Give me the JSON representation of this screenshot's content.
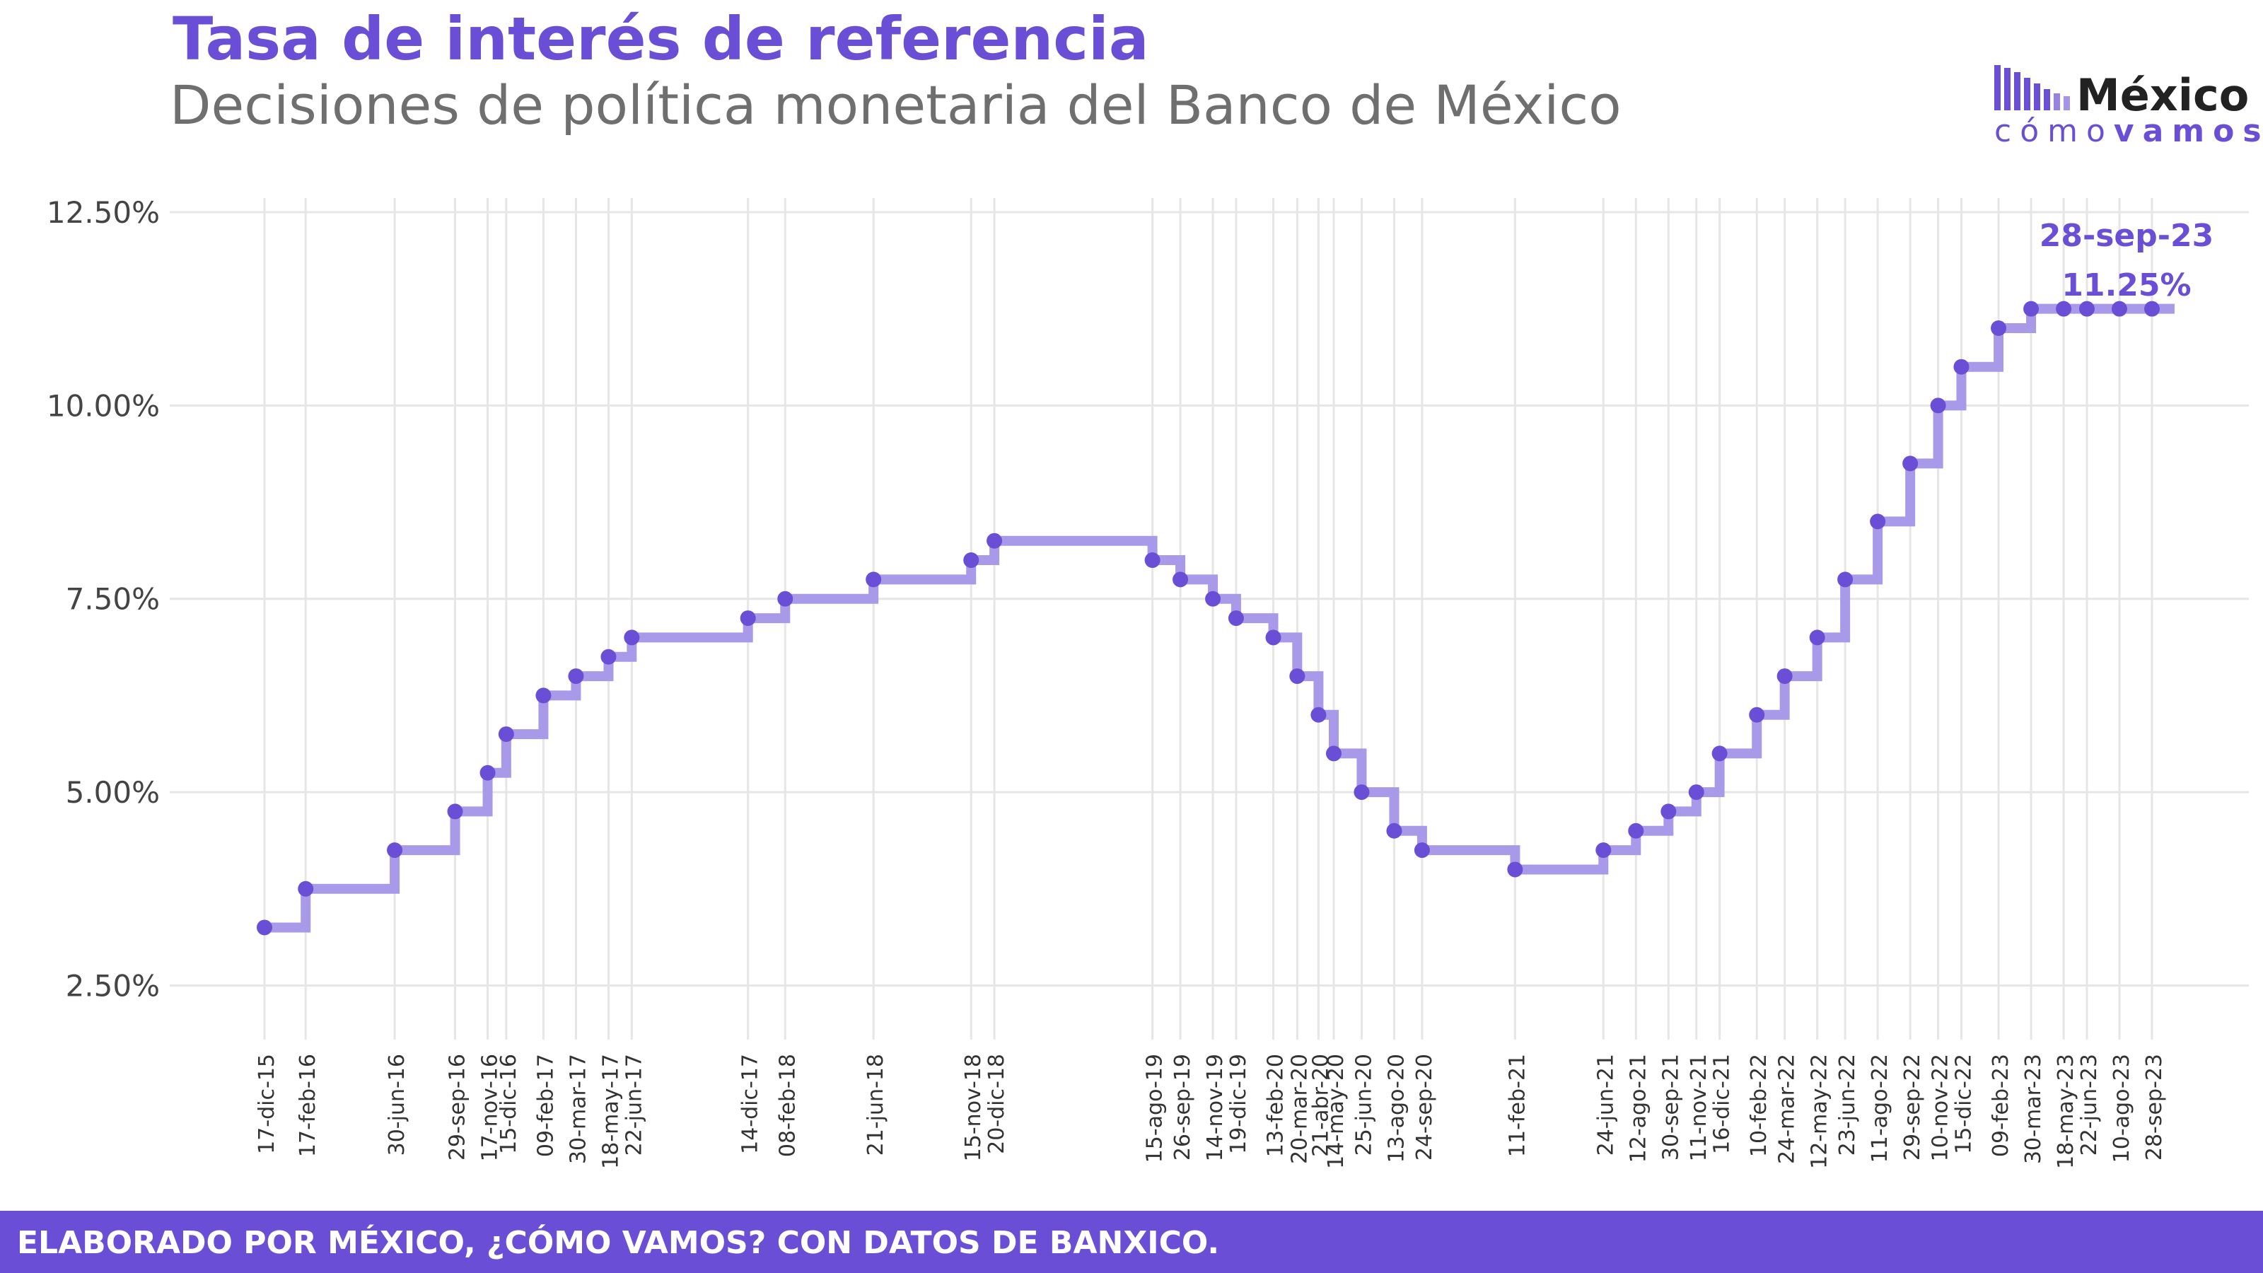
{
  "header": {
    "title": "Tasa de interés de referencia",
    "subtitle": "Decisiones de política monetaria del Banco de México"
  },
  "logo": {
    "word": "México",
    "sub_light": "cómo",
    "sub_bold": "vamos"
  },
  "footer": {
    "text": "ELABORADO POR MÉXICO, ¿CÓMO VAMOS? CON DATOS DE BANXICO."
  },
  "colors": {
    "accent": "#6a4fd6",
    "line": "#a99ae9",
    "grid": "#e6e6e6",
    "footer": "#6a4fd6"
  },
  "chart_data": {
    "type": "line",
    "step": "post",
    "ylim": [
      1.8,
      12.5
    ],
    "yticks": [
      2.5,
      5.0,
      7.5,
      10.0,
      12.5
    ],
    "ytick_labels": [
      "2.50%",
      "5.00%",
      "7.50%",
      "10.00%",
      "12.50%"
    ],
    "grid": true,
    "x_end": "2023-11-01",
    "annotation": {
      "date_label": "28-sep-23",
      "value_label": "11.25%"
    },
    "points": [
      {
        "date": "2015-12-17",
        "label": "17-dic-15",
        "value": 3.25
      },
      {
        "date": "2016-02-17",
        "label": "17-feb-16",
        "value": 3.75
      },
      {
        "date": "2016-06-30",
        "label": "30-jun-16",
        "value": 4.25
      },
      {
        "date": "2016-09-29",
        "label": "29-sep-16",
        "value": 4.75
      },
      {
        "date": "2016-11-17",
        "label": "17-nov-16",
        "value": 5.25
      },
      {
        "date": "2016-12-15",
        "label": "15-dic-16",
        "value": 5.75
      },
      {
        "date": "2017-02-09",
        "label": "09-feb-17",
        "value": 6.25
      },
      {
        "date": "2017-03-30",
        "label": "30-mar-17",
        "value": 6.5
      },
      {
        "date": "2017-05-18",
        "label": "18-may-17",
        "value": 6.75
      },
      {
        "date": "2017-06-22",
        "label": "22-jun-17",
        "value": 7.0
      },
      {
        "date": "2017-12-14",
        "label": "14-dic-17",
        "value": 7.25
      },
      {
        "date": "2018-02-08",
        "label": "08-feb-18",
        "value": 7.5
      },
      {
        "date": "2018-06-21",
        "label": "21-jun-18",
        "value": 7.75
      },
      {
        "date": "2018-11-15",
        "label": "15-nov-18",
        "value": 8.0
      },
      {
        "date": "2018-12-20",
        "label": "20-dic-18",
        "value": 8.25
      },
      {
        "date": "2019-08-15",
        "label": "15-ago-19",
        "value": 8.0
      },
      {
        "date": "2019-09-26",
        "label": "26-sep-19",
        "value": 7.75
      },
      {
        "date": "2019-11-14",
        "label": "14-nov-19",
        "value": 7.5
      },
      {
        "date": "2019-12-19",
        "label": "19-dic-19",
        "value": 7.25
      },
      {
        "date": "2020-02-13",
        "label": "13-feb-20",
        "value": 7.0
      },
      {
        "date": "2020-03-20",
        "label": "20-mar-20",
        "value": 6.5
      },
      {
        "date": "2020-04-21",
        "label": "21-abr-20",
        "value": 6.0
      },
      {
        "date": "2020-05-14",
        "label": "14-may-20",
        "value": 5.5
      },
      {
        "date": "2020-06-25",
        "label": "25-jun-20",
        "value": 5.0
      },
      {
        "date": "2020-08-13",
        "label": "13-ago-20",
        "value": 4.5
      },
      {
        "date": "2020-09-24",
        "label": "24-sep-20",
        "value": 4.25
      },
      {
        "date": "2021-02-11",
        "label": "11-feb-21",
        "value": 4.0
      },
      {
        "date": "2021-06-24",
        "label": "24-jun-21",
        "value": 4.25
      },
      {
        "date": "2021-08-12",
        "label": "12-ago-21",
        "value": 4.5
      },
      {
        "date": "2021-09-30",
        "label": "30-sep-21",
        "value": 4.75
      },
      {
        "date": "2021-11-11",
        "label": "11-nov-21",
        "value": 5.0
      },
      {
        "date": "2021-12-16",
        "label": "16-dic-21",
        "value": 5.5
      },
      {
        "date": "2022-02-10",
        "label": "10-feb-22",
        "value": 6.0
      },
      {
        "date": "2022-03-24",
        "label": "24-mar-22",
        "value": 6.5
      },
      {
        "date": "2022-05-12",
        "label": "12-may-22",
        "value": 7.0
      },
      {
        "date": "2022-06-23",
        "label": "23-jun-22",
        "value": 7.75
      },
      {
        "date": "2022-08-11",
        "label": "11-ago-22",
        "value": 8.5
      },
      {
        "date": "2022-09-29",
        "label": "29-sep-22",
        "value": 9.25
      },
      {
        "date": "2022-11-10",
        "label": "10-nov-22",
        "value": 10.0
      },
      {
        "date": "2022-12-15",
        "label": "15-dic-22",
        "value": 10.5
      },
      {
        "date": "2023-02-09",
        "label": "09-feb-23",
        "value": 11.0
      },
      {
        "date": "2023-03-30",
        "label": "30-mar-23",
        "value": 11.25
      },
      {
        "date": "2023-05-18",
        "label": "18-may-23",
        "value": 11.25
      },
      {
        "date": "2023-06-22",
        "label": "22-jun-23",
        "value": 11.25
      },
      {
        "date": "2023-08-10",
        "label": "10-ago-23",
        "value": 11.25
      },
      {
        "date": "2023-09-28",
        "label": "28-sep-23",
        "value": 11.25
      }
    ]
  }
}
